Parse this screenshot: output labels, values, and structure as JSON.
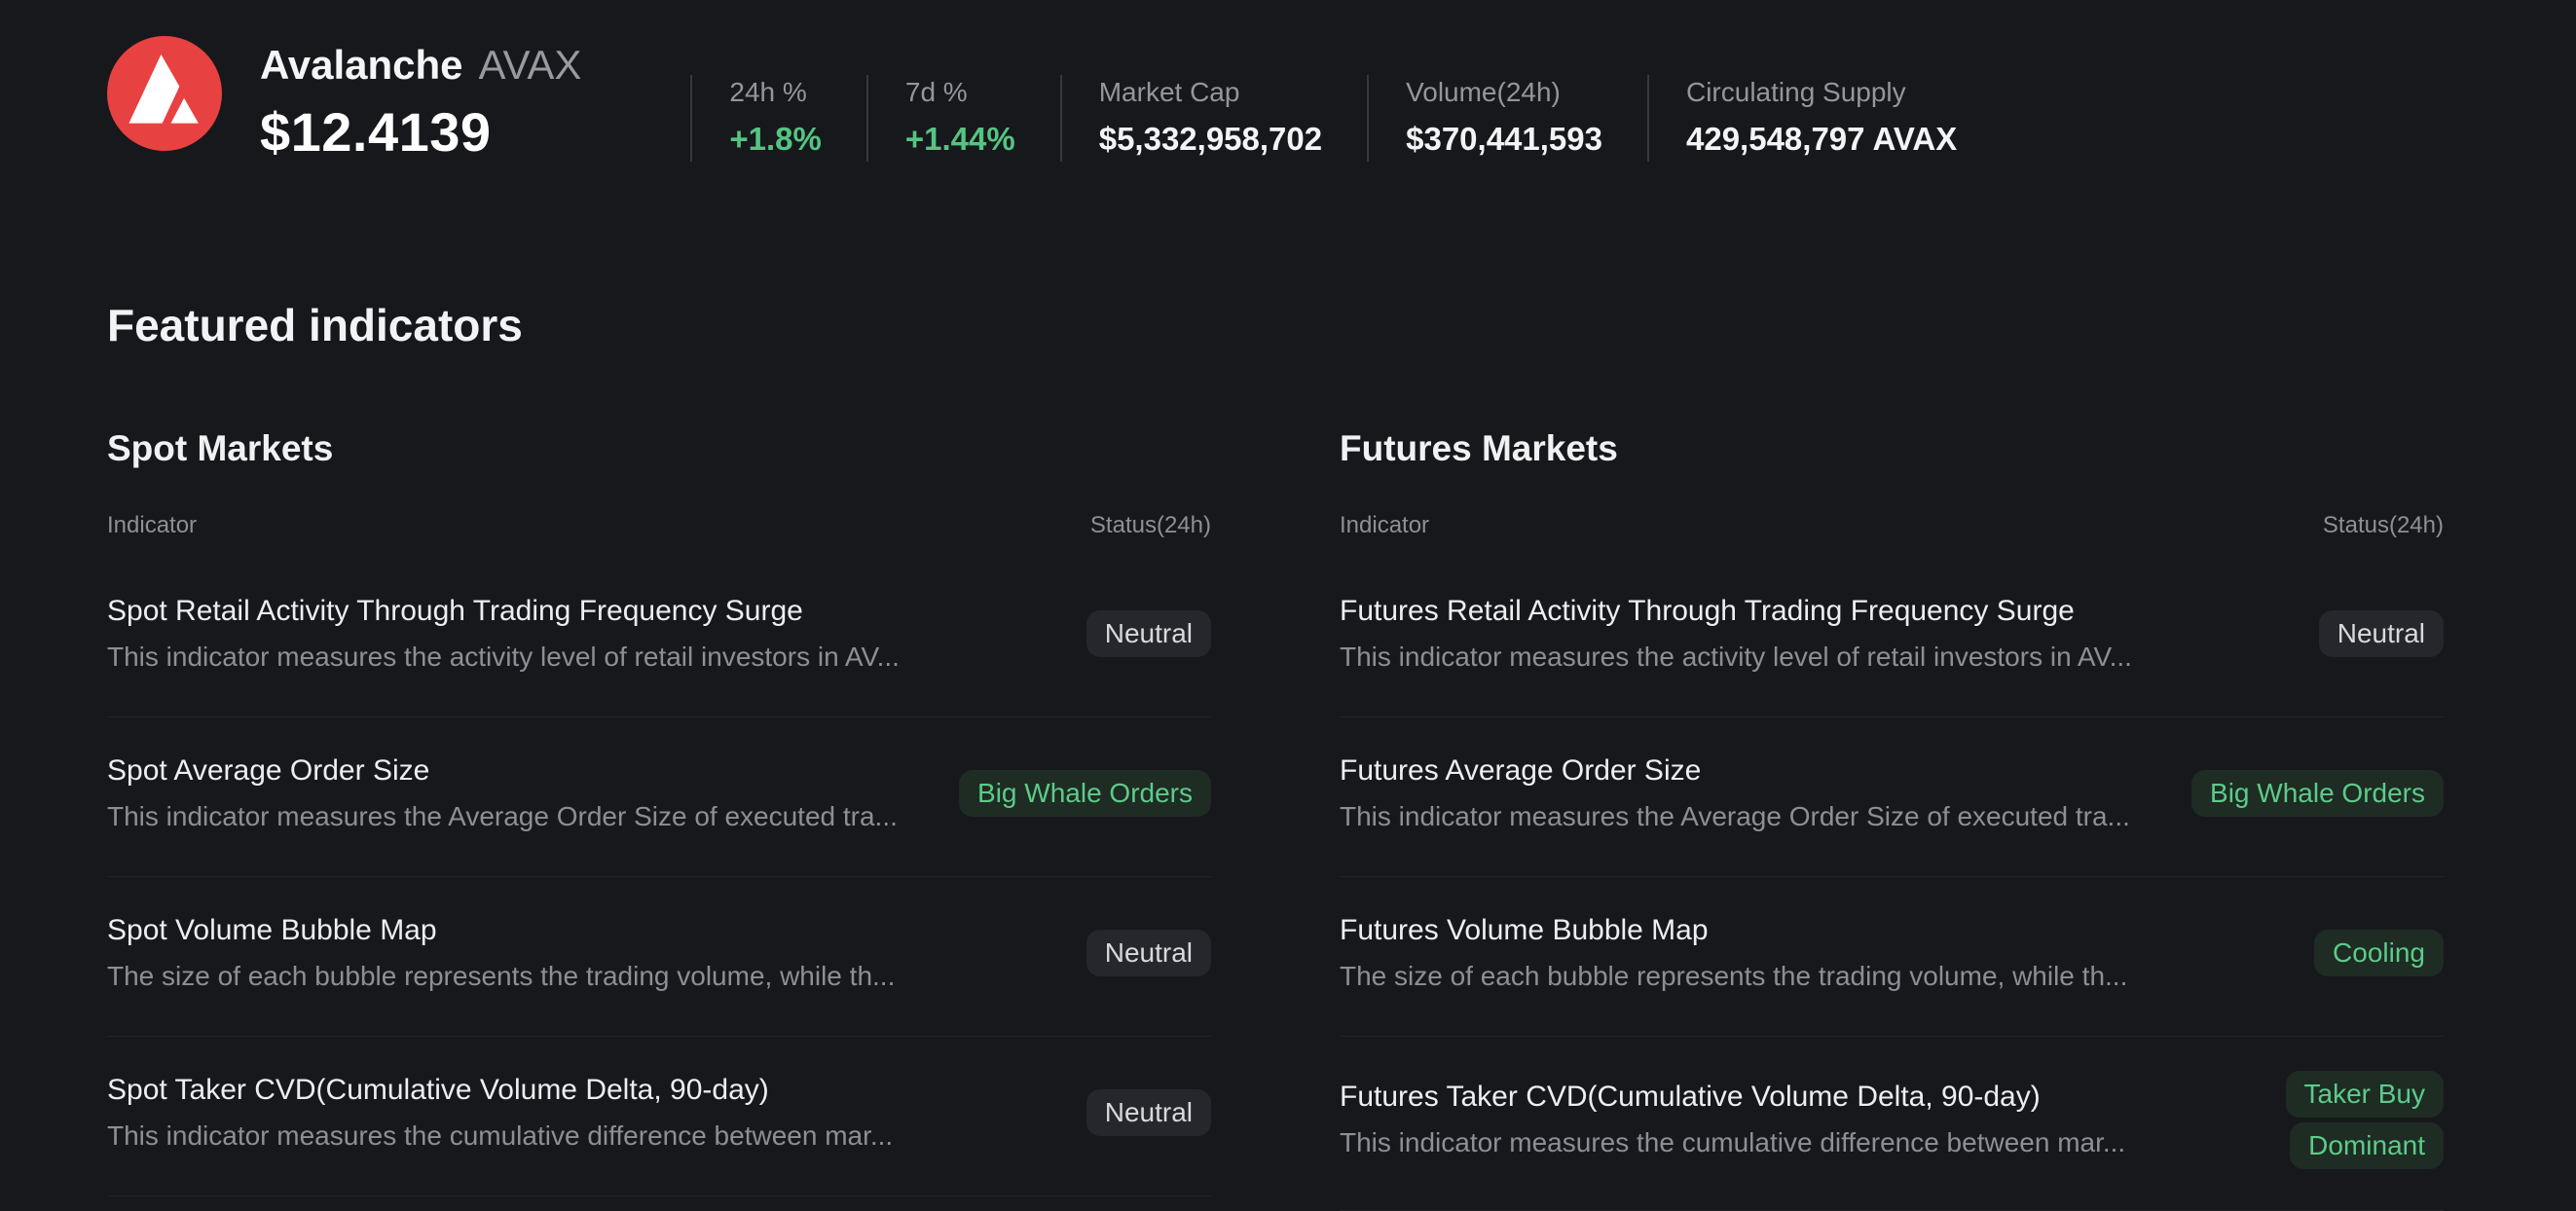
{
  "header": {
    "coin_name": "Avalanche",
    "ticker": "AVAX",
    "price": "$12.4139",
    "stats": [
      {
        "label": "24h %",
        "value": "+1.8%",
        "positive": true
      },
      {
        "label": "7d %",
        "value": "+1.44%",
        "positive": true
      },
      {
        "label": "Market Cap",
        "value": "$5,332,958,702",
        "positive": false
      },
      {
        "label": "Volume(24h)",
        "value": "$370,441,593",
        "positive": false
      },
      {
        "label": "Circulating Supply",
        "value": "429,548,797 AVAX",
        "positive": false
      }
    ]
  },
  "page_title": "Featured indicators",
  "table_headers": {
    "indicator": "Indicator",
    "status": "Status(24h)"
  },
  "sections": [
    {
      "title": "Spot Markets",
      "rows": [
        {
          "title": "Spot Retail Activity Through Trading Frequency Surge",
          "description": "This indicator measures the activity level of retail investors in AV...",
          "status": [
            "Neutral"
          ],
          "status_type": "neutral"
        },
        {
          "title": "Spot Average Order Size",
          "description": "This indicator measures the Average Order Size of executed tra...",
          "status": [
            "Big Whale Orders"
          ],
          "status_type": "positive"
        },
        {
          "title": "Spot Volume Bubble Map",
          "description": "The size of each bubble represents the trading volume, while th...",
          "status": [
            "Neutral"
          ],
          "status_type": "neutral"
        },
        {
          "title": "Spot Taker CVD(Cumulative Volume Delta, 90-day)",
          "description": "This indicator measures the cumulative difference between mar...",
          "status": [
            "Neutral"
          ],
          "status_type": "neutral"
        }
      ]
    },
    {
      "title": "Futures Markets",
      "rows": [
        {
          "title": "Futures Retail Activity Through Trading Frequency Surge",
          "description": "This indicator measures the activity level of retail investors in AV...",
          "status": [
            "Neutral"
          ],
          "status_type": "neutral"
        },
        {
          "title": "Futures Average Order Size",
          "description": "This indicator measures the Average Order Size of executed tra...",
          "status": [
            "Big Whale Orders"
          ],
          "status_type": "positive"
        },
        {
          "title": "Futures Volume Bubble Map",
          "description": "The size of each bubble represents the trading volume, while th...",
          "status": [
            "Cooling"
          ],
          "status_type": "positive"
        },
        {
          "title": "Futures Taker CVD(Cumulative Volume Delta, 90-day)",
          "description": "This indicator measures the cumulative difference between mar...",
          "status": [
            "Taker Buy",
            "Dominant"
          ],
          "status_type": "positive"
        }
      ]
    }
  ],
  "colors": {
    "background": "#17181c",
    "accent_green": "#55c483",
    "badge_green_bg": "#1e2c24",
    "badge_green_text": "#5dcb89",
    "badge_neutral_bg": "#26272c",
    "badge_neutral_text": "#d8d9db",
    "avax_red": "#e84142"
  }
}
